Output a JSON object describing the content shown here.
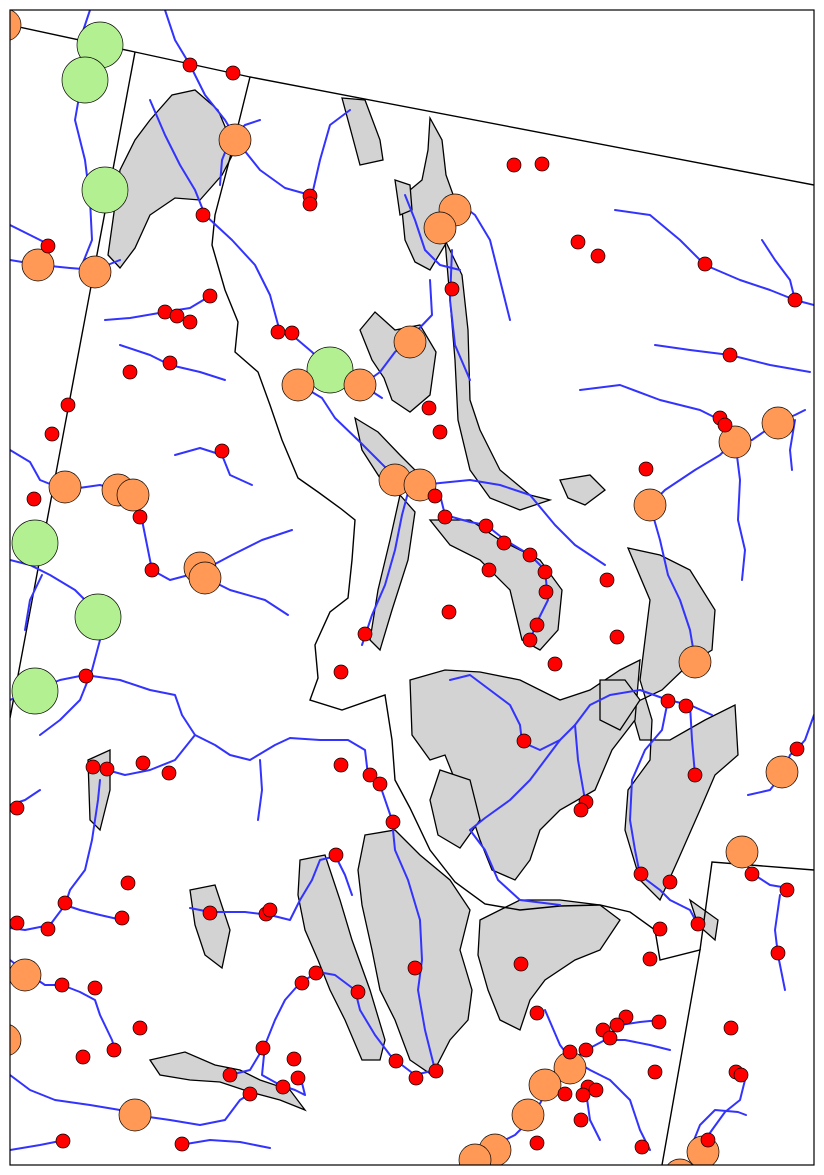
{
  "map": {
    "colors": {
      "background": "#ffffff",
      "basin_fill": "#d3d3d3",
      "river": "#3333ff",
      "small_site": "#ff0000",
      "medium_site": "#ff9955",
      "large_site": "#b3f092"
    },
    "site_classes": [
      "small",
      "medium",
      "large"
    ]
  }
}
